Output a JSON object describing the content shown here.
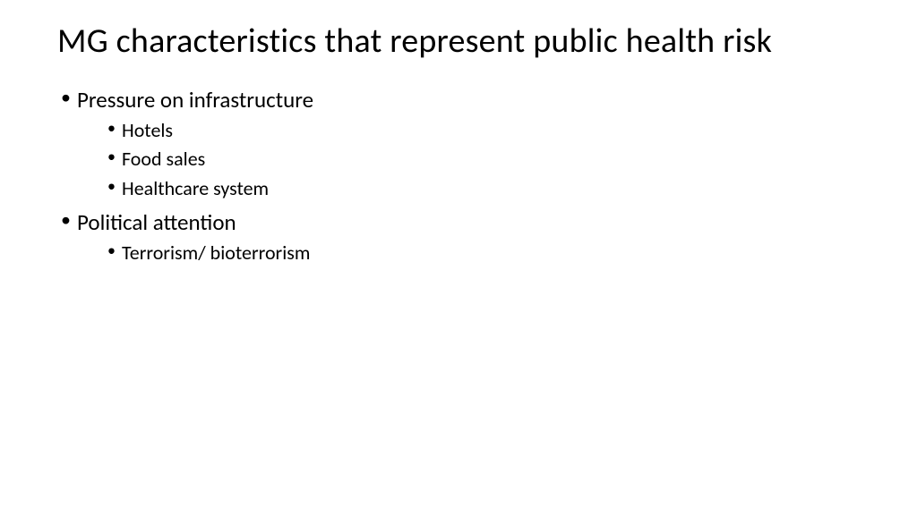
{
  "slide": {
    "title": "MG characteristics that represent public health risk",
    "bullets": [
      {
        "text": "Pressure on infrastructure",
        "sub": [
          "Hotels",
          "Food sales",
          "Healthcare system"
        ]
      },
      {
        "text": "Political attention",
        "sub": [
          "Terrorism/ bioterrorism"
        ]
      }
    ],
    "background_color": "#ffffff",
    "text_color": "#000000",
    "title_fontsize": 38,
    "level1_fontsize": 25,
    "level2_fontsize": 22
  }
}
